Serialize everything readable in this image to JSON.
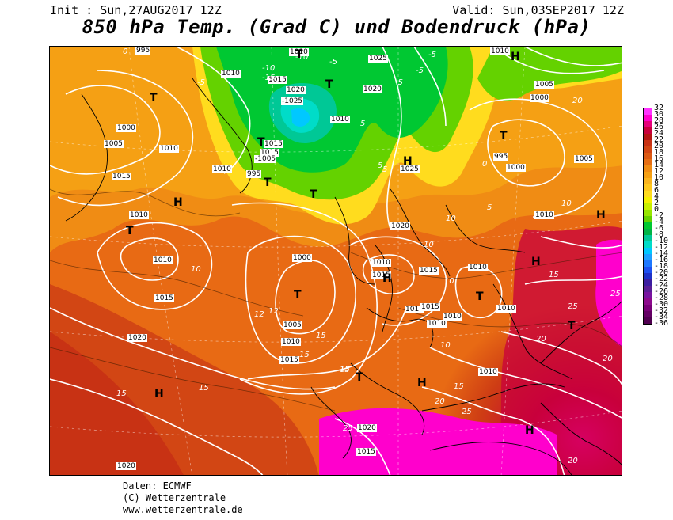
{
  "header": {
    "init": "Init : Sun,27AUG2017 12Z",
    "valid": "Valid: Sun,03SEP2017 12Z",
    "title": "850 hPa Temp. (Grad C) und Bodendruck (hPa)"
  },
  "colorbar": {
    "labels": [
      "32",
      "30",
      "28",
      "26",
      "24",
      "22",
      "20",
      "18",
      "16",
      "14",
      "12",
      "10",
      "8",
      "6",
      "4",
      "2",
      "0",
      "-2",
      "-4",
      "-6",
      "-8",
      "-10",
      "-12",
      "-14",
      "-16",
      "-18",
      "-20",
      "-22",
      "-24",
      "-26",
      "-28",
      "-30",
      "-32",
      "-34",
      "-36"
    ],
    "colors": [
      "#ff33ff",
      "#ff00cc",
      "#e6007a",
      "#c8003c",
      "#b41414",
      "#c83214",
      "#d24614",
      "#dc5a14",
      "#e66e14",
      "#f08c14",
      "#f5a014",
      "#fab41e",
      "#ffc81e",
      "#ffdc1e",
      "#f5f000",
      "#c8f000",
      "#96e600",
      "#64d200",
      "#00c832",
      "#00b446",
      "#00c896",
      "#00dcc8",
      "#00c8ff",
      "#1ea0ff",
      "#1e78ff",
      "#1e50f0",
      "#1e32c8",
      "#3c1ea0",
      "#5a1e96",
      "#7814a0",
      "#8c0a8c",
      "#780078",
      "#640064",
      "#500050"
    ]
  },
  "map": {
    "isobar_labels": [
      {
        "t": "995"
      },
      {
        "t": "1010"
      },
      {
        "t": "1015"
      },
      {
        "t": "1020"
      },
      {
        "t": "-1025"
      },
      {
        "t": "1010"
      },
      {
        "t": "1025"
      },
      {
        "t": "1020"
      },
      {
        "t": "1010"
      },
      {
        "t": "1005"
      },
      {
        "t": "1000"
      },
      {
        "t": "1000"
      },
      {
        "t": "1005"
      },
      {
        "t": "1010"
      },
      {
        "t": "1015"
      },
      {
        "t": "1010"
      },
      {
        "t": "1015"
      },
      {
        "t": "-1005"
      },
      {
        "t": "995"
      },
      {
        "t": "1010"
      },
      {
        "t": "1025"
      },
      {
        "t": "995"
      },
      {
        "t": "1000"
      },
      {
        "t": "1005"
      },
      {
        "t": "1015"
      },
      {
        "t": "1010"
      },
      {
        "t": "1010"
      },
      {
        "t": "1020"
      },
      {
        "t": "1010"
      },
      {
        "t": "1000"
      },
      {
        "t": "1010"
      },
      {
        "t": "1015"
      },
      {
        "t": "1015"
      },
      {
        "t": "1010"
      },
      {
        "t": "1015"
      },
      {
        "t": "1005"
      },
      {
        "t": "1010"
      },
      {
        "t": "1015"
      },
      {
        "t": "1020"
      },
      {
        "t": "1011"
      },
      {
        "t": "1015"
      },
      {
        "t": "1010"
      },
      {
        "t": "1010"
      },
      {
        "t": "1010"
      },
      {
        "t": "1010"
      },
      {
        "t": "1020"
      },
      {
        "t": "1015"
      },
      {
        "t": "1020"
      }
    ],
    "temp_labels": [
      "0",
      "-5",
      "-10",
      "-15",
      "-10",
      "-5",
      "-5",
      "-5",
      "-5",
      "5",
      "5",
      "0",
      "5",
      "10",
      "10",
      "10",
      "10",
      "10",
      "12",
      "12",
      "15",
      "15",
      "15",
      "15",
      "15",
      "20",
      "20",
      "20",
      "20",
      "25",
      "25",
      "25",
      "25",
      "20",
      "5",
      "10",
      "15",
      "15",
      "15"
    ],
    "pressure_centers": [
      "T",
      "T",
      "T",
      "T",
      "T",
      "T",
      "T",
      "T",
      "T",
      "T",
      "T",
      "T",
      "H",
      "H",
      "H",
      "H",
      "H",
      "H",
      "H",
      "H",
      "H"
    ]
  },
  "footer": {
    "line1": "Daten: ECMWF",
    "line2": "(C) Wetterzentrale",
    "line3": "www.wetterzentrale.de"
  }
}
